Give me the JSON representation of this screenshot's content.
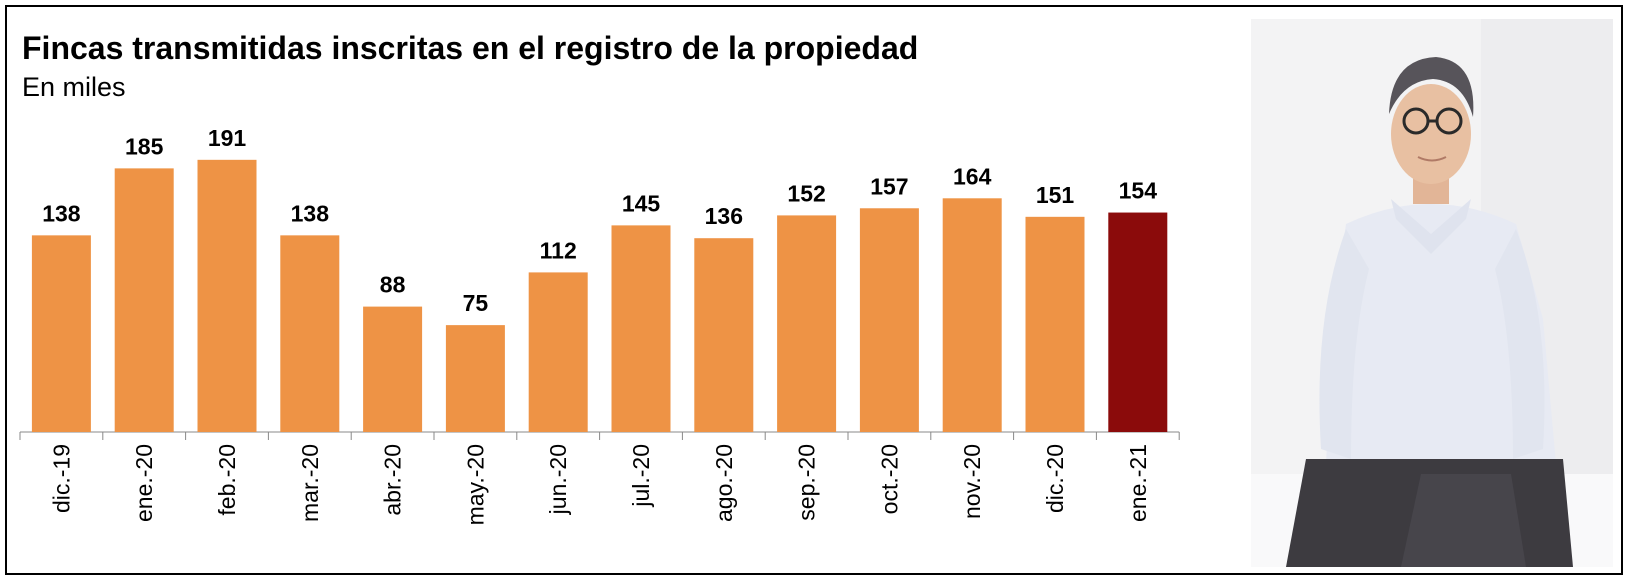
{
  "chart_data": {
    "type": "bar",
    "title": "Fincas transmitidas inscritas en el registro de la propiedad",
    "subtitle": "En miles",
    "categories": [
      "dic.-19",
      "ene.-20",
      "feb.-20",
      "mar.-20",
      "abr.-20",
      "may.-20",
      "jun.-20",
      "jul.-20",
      "ago.-20",
      "sep.-20",
      "oct.-20",
      "nov.-20",
      "dic.-20",
      "ene.-21"
    ],
    "values": [
      138,
      185,
      191,
      138,
      88,
      75,
      112,
      145,
      136,
      152,
      157,
      164,
      151,
      154
    ],
    "value_labels": [
      "138",
      "185",
      "191",
      "138",
      "88",
      "75",
      "112",
      "145",
      "136",
      "152",
      "157",
      "164",
      "151",
      "154"
    ],
    "highlight_index": 13,
    "ylim": [
      0,
      200
    ],
    "grid": false,
    "legend": "none"
  },
  "colors": {
    "bar": "#EE9345",
    "highlight": "#8B0B0B",
    "axis": "#888888",
    "text": "#000000"
  },
  "photo": {
    "icon": "portrait-photo-icon"
  }
}
